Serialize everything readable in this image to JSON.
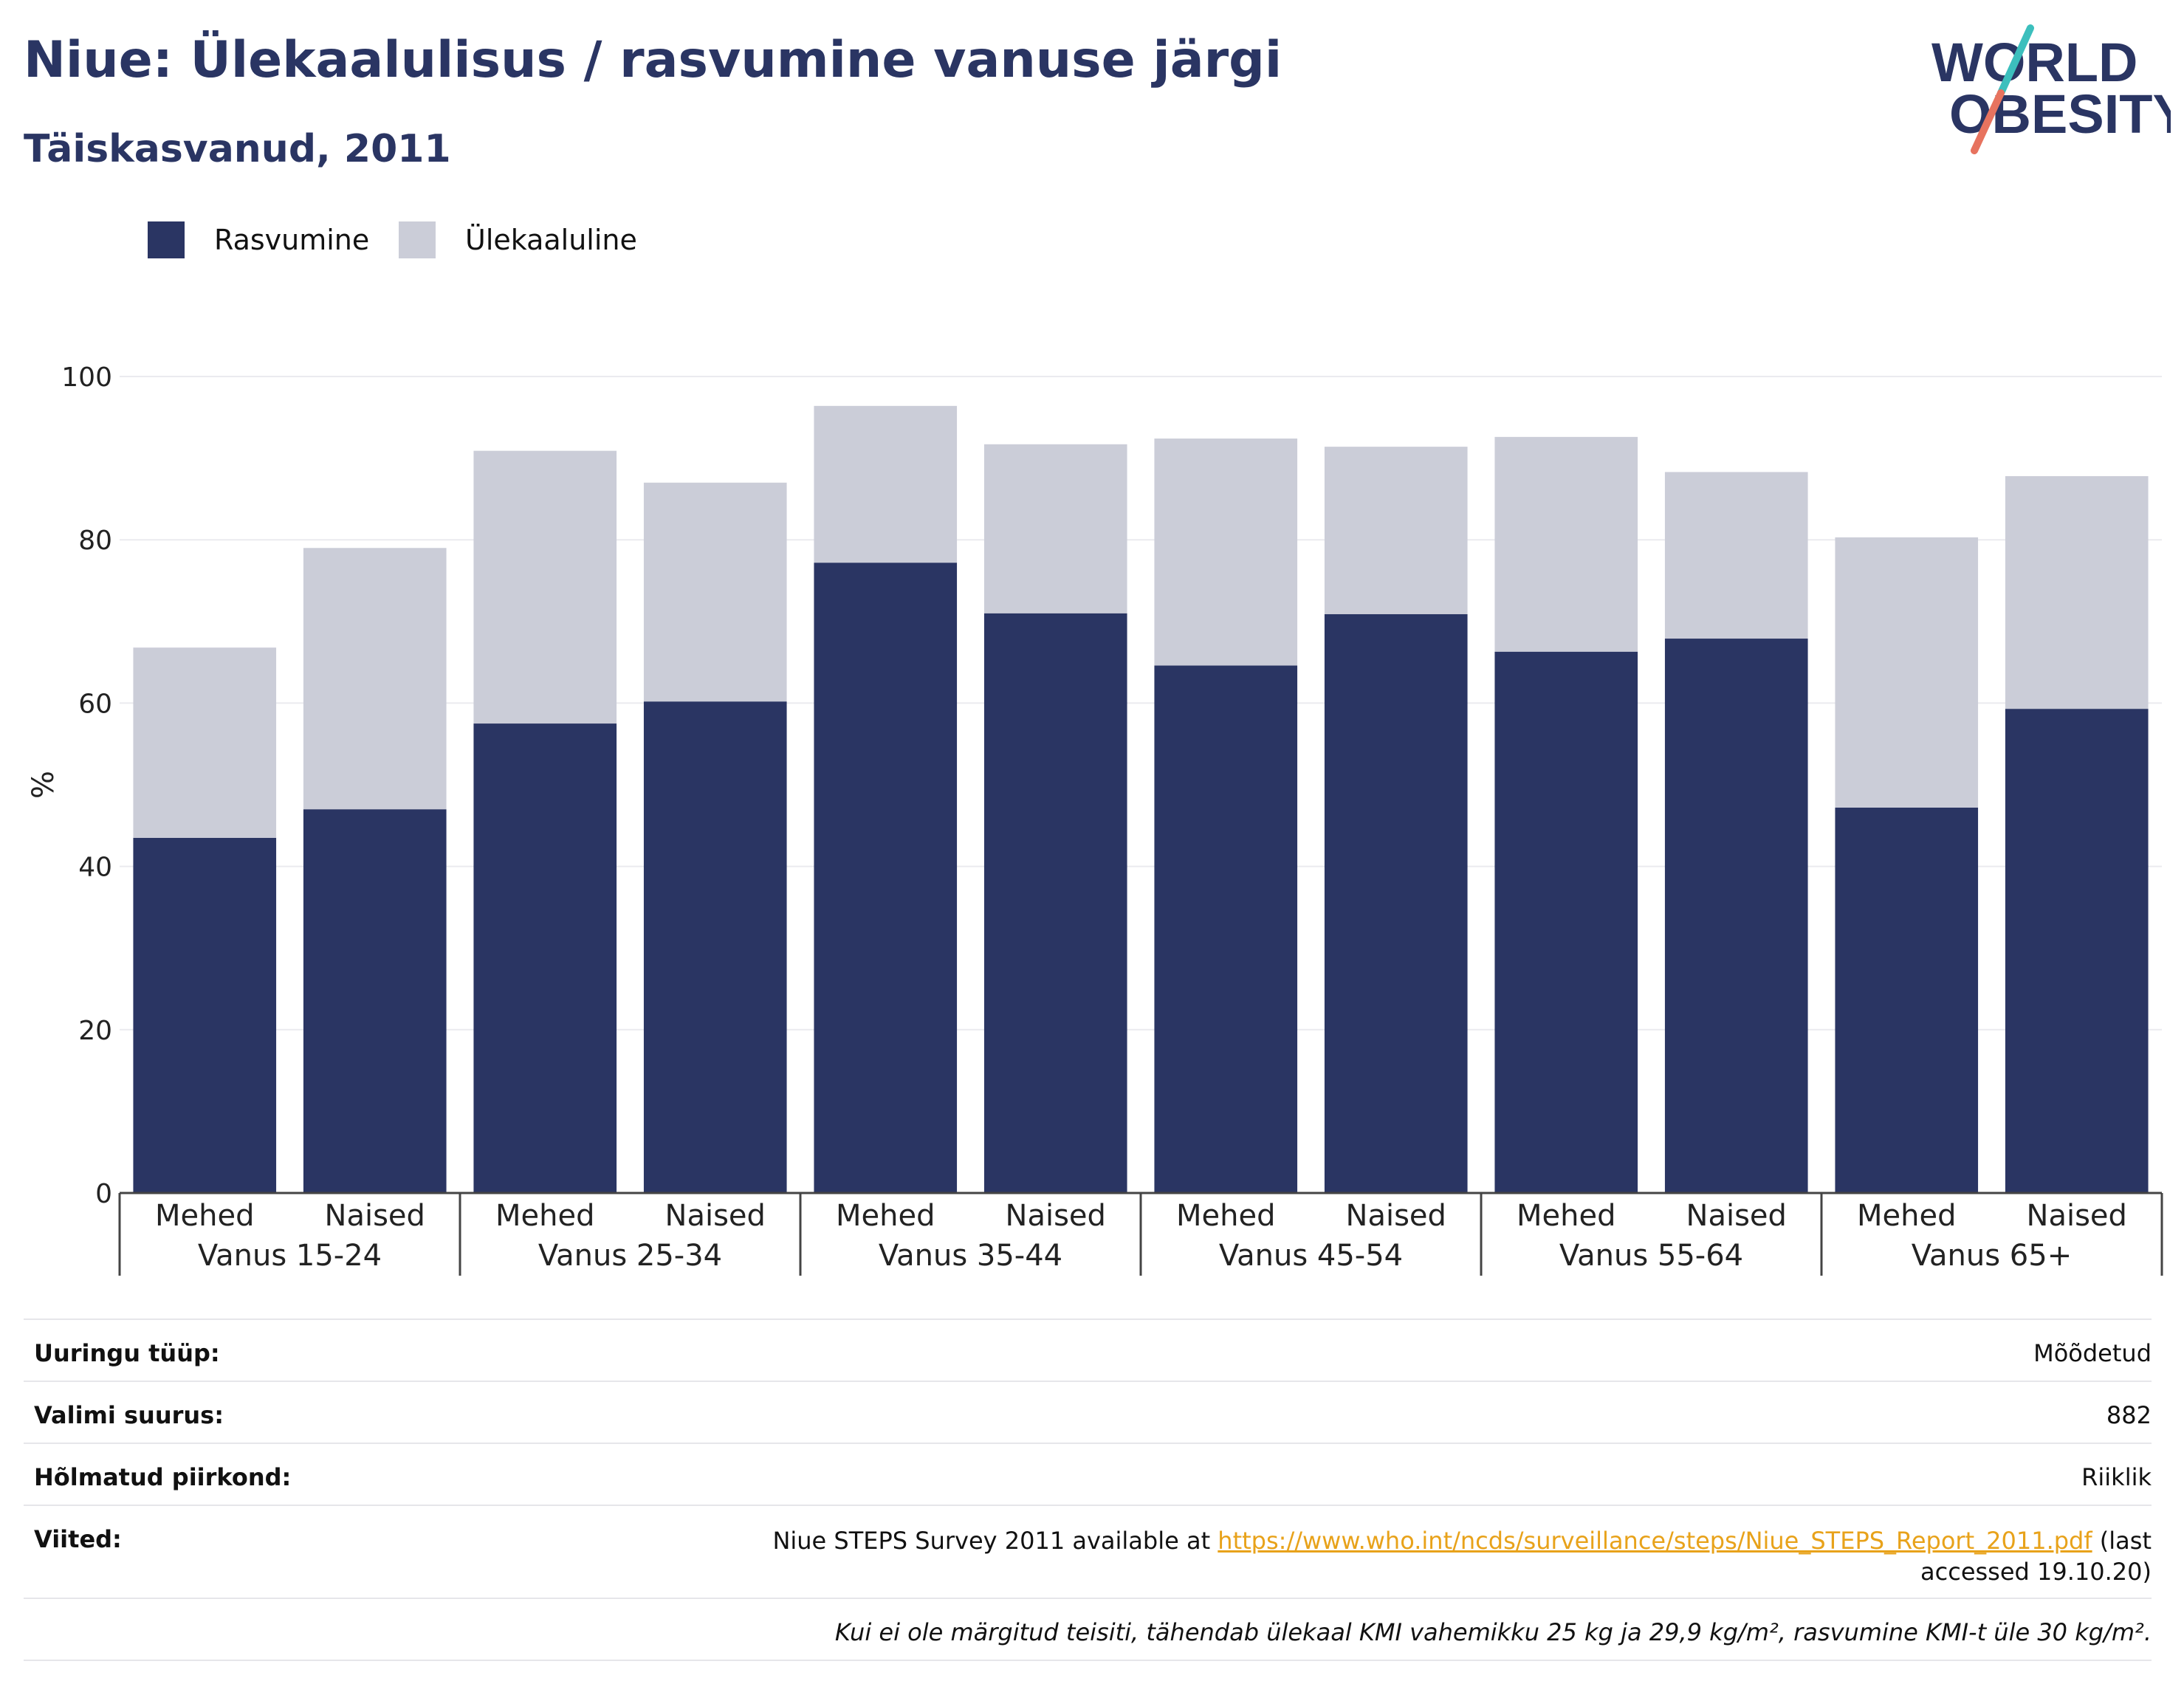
{
  "header": {
    "title": "Niue: Ülekaalulisus / rasvumine vanuse järgi",
    "subtitle": "Täiskasvanud, 2011",
    "logo_text_1": "WORLD",
    "logo_text_2": "OBESITY"
  },
  "colors": {
    "obesity": "#2a3563",
    "overweight": "#cbcdd8",
    "title": "#2a3563",
    "link": "#e8a21a",
    "logo_teal": "#3cbfbd",
    "logo_red": "#e7735f"
  },
  "chart_data": {
    "type": "bar",
    "stacked": true,
    "ylabel": "%",
    "ylim": [
      0,
      100
    ],
    "yticks": [
      0,
      20,
      40,
      60,
      80,
      100
    ],
    "grid": true,
    "legend": "top-left",
    "groups": [
      "Vanus 15-24",
      "Vanus 25-34",
      "Vanus 35-44",
      "Vanus 45-54",
      "Vanus 55-64",
      "Vanus 65+"
    ],
    "categories": [
      "Mehed",
      "Naised",
      "Mehed",
      "Naised",
      "Mehed",
      "Naised",
      "Mehed",
      "Naised",
      "Mehed",
      "Naised",
      "Mehed",
      "Naised"
    ],
    "series": [
      {
        "name": "Rasvumine",
        "values": [
          43.5,
          47.0,
          57.5,
          60.2,
          77.2,
          71.0,
          64.6,
          70.9,
          66.3,
          67.9,
          47.2,
          59.3
        ]
      },
      {
        "name": "Ülekaaluline",
        "values": [
          23.3,
          32.0,
          33.4,
          26.8,
          19.2,
          20.7,
          27.8,
          20.5,
          26.3,
          20.4,
          33.1,
          28.5
        ]
      }
    ]
  },
  "info": {
    "rows": [
      {
        "label": "Uuringu tüüp:",
        "value": "Mõõdetud"
      },
      {
        "label": "Valimi suurus:",
        "value": "882"
      },
      {
        "label": "Hõlmatud piirkond:",
        "value": "Riiklik"
      }
    ],
    "references_label": "Viited:",
    "references_text_before": "Niue STEPS Survey 2011 available at ",
    "references_link": "https://www.who.int/ncds/surveillance/steps/Niue_STEPS_Report_2011.pdf",
    "references_text_after": " (last accessed 19.10.20)",
    "note": "Kui ei ole märgitud teisiti, tähendab ülekaal KMI vahemikku 25 kg ja 29,9 kg/m², rasvumine KMI-t üle 30 kg/m²."
  }
}
